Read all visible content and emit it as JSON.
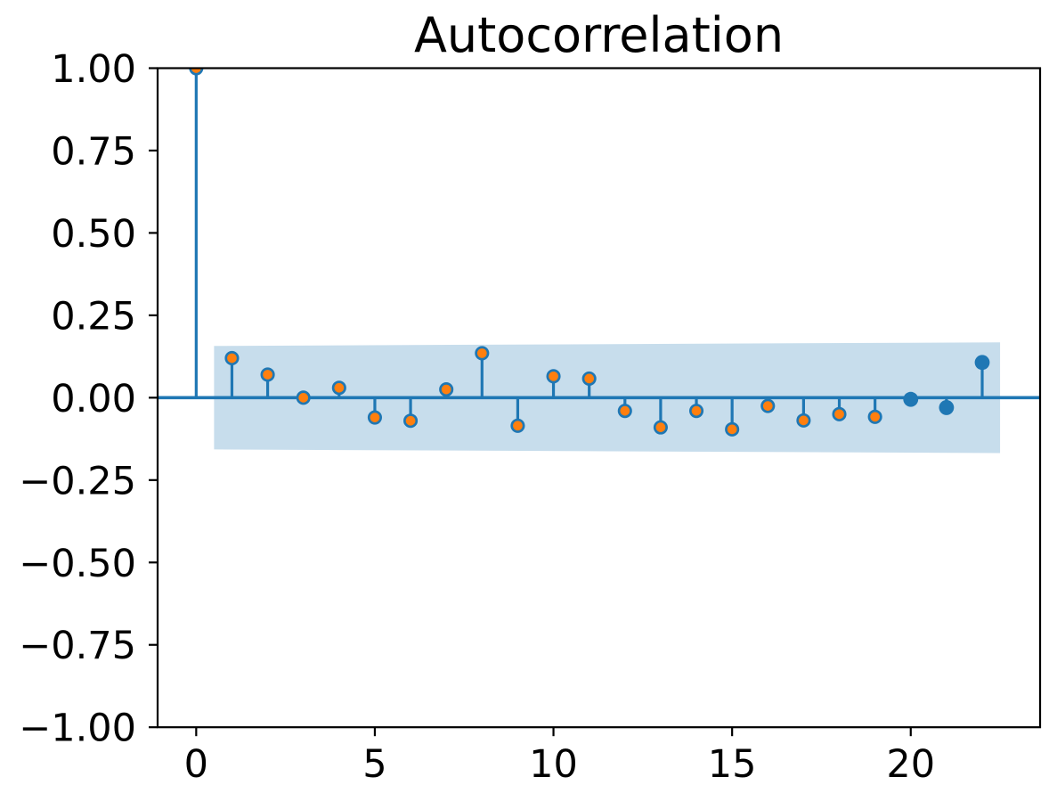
{
  "figure": {
    "background_color": "#ffffff"
  },
  "chart_data": {
    "type": "scatter",
    "variant": "stem (autocorrelation / ACF plot)",
    "title": "Autocorrelation",
    "xlabel": "",
    "ylabel": "",
    "x": [
      0,
      1,
      2,
      3,
      4,
      5,
      6,
      7,
      8,
      9,
      10,
      11,
      12,
      13,
      14,
      15,
      16,
      17,
      18,
      19,
      20,
      21,
      22
    ],
    "values": [
      1.0,
      0.12,
      0.07,
      0.0,
      0.03,
      -0.06,
      -0.07,
      0.025,
      0.135,
      -0.085,
      0.065,
      0.058,
      -0.04,
      -0.09,
      -0.04,
      -0.096,
      -0.025,
      -0.069,
      -0.05,
      -0.058,
      -0.005,
      -0.03,
      0.107
    ],
    "solid_blue_marker_lags": [
      20,
      21,
      22
    ],
    "confidence_band": {
      "x": [
        0.5,
        22.5
      ],
      "upper": [
        0.157,
        0.168
      ],
      "lower": [
        -0.157,
        -0.168
      ]
    },
    "xlim": [
      -1.08,
      23.62
    ],
    "ylim": [
      -1.0,
      1.0
    ],
    "x_ticks": {
      "values": [
        0,
        5,
        10,
        15,
        20
      ],
      "labels": [
        "0",
        "5",
        "10",
        "15",
        "20"
      ]
    },
    "y_ticks": {
      "values": [
        1.0,
        0.75,
        0.5,
        0.25,
        0.0,
        -0.25,
        -0.5,
        -0.75,
        -1.0
      ],
      "labels": [
        "1.00",
        "0.75",
        "0.50",
        "0.25",
        "0.00",
        "−0.25",
        "−0.50",
        "−0.75",
        "−1.00"
      ]
    },
    "grid": false,
    "legend": null,
    "colors": {
      "stem": "#1f77b4",
      "zero_line": "#1f77b4",
      "marker_face": "#ff7f0e",
      "marker_edge": "#1f77b4",
      "solid_marker": "#1f77b4",
      "band": "#1f77b4",
      "band_opacity": 0.25,
      "spine": "#000000",
      "text": "#000000"
    }
  }
}
